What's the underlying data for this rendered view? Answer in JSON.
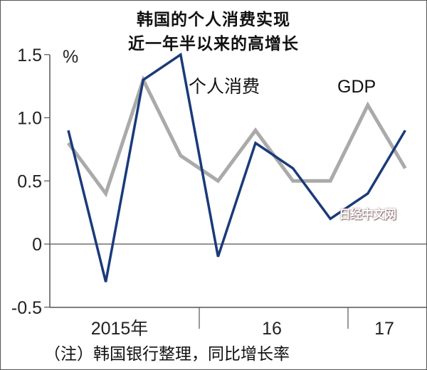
{
  "chart_data": {
    "type": "line",
    "title": [
      "韩国的个人消费实现",
      "近一年半以来的高增长"
    ],
    "ylabel": "%",
    "ylim": [
      -0.5,
      1.5
    ],
    "yticks": [
      1.5,
      1.0,
      0.5,
      0,
      -0.5
    ],
    "ytick_labels": [
      "1.5",
      "1.0",
      "0.5",
      "0",
      "-0.5"
    ],
    "x": [
      "2015Q1",
      "2015Q2",
      "2015Q3",
      "2015Q4",
      "2016Q1",
      "2016Q2",
      "2016Q3",
      "2016Q4",
      "2017Q1",
      "2017Q2"
    ],
    "xgroup_labels": [
      "2015年",
      "16",
      "17"
    ],
    "series": [
      {
        "name": "个人消费",
        "color": "#1a3a7a",
        "values": [
          0.9,
          -0.3,
          1.3,
          1.5,
          -0.1,
          0.8,
          0.6,
          0.2,
          0.4,
          0.9
        ]
      },
      {
        "name": "GDP",
        "color": "#aaaaaa",
        "values": [
          0.8,
          0.4,
          1.3,
          0.7,
          0.5,
          0.9,
          0.5,
          0.5,
          1.1,
          0.6
        ]
      }
    ],
    "grid": false,
    "note": "（注）韩国银行整理，同比增长率",
    "watermark": "日经中文网"
  }
}
